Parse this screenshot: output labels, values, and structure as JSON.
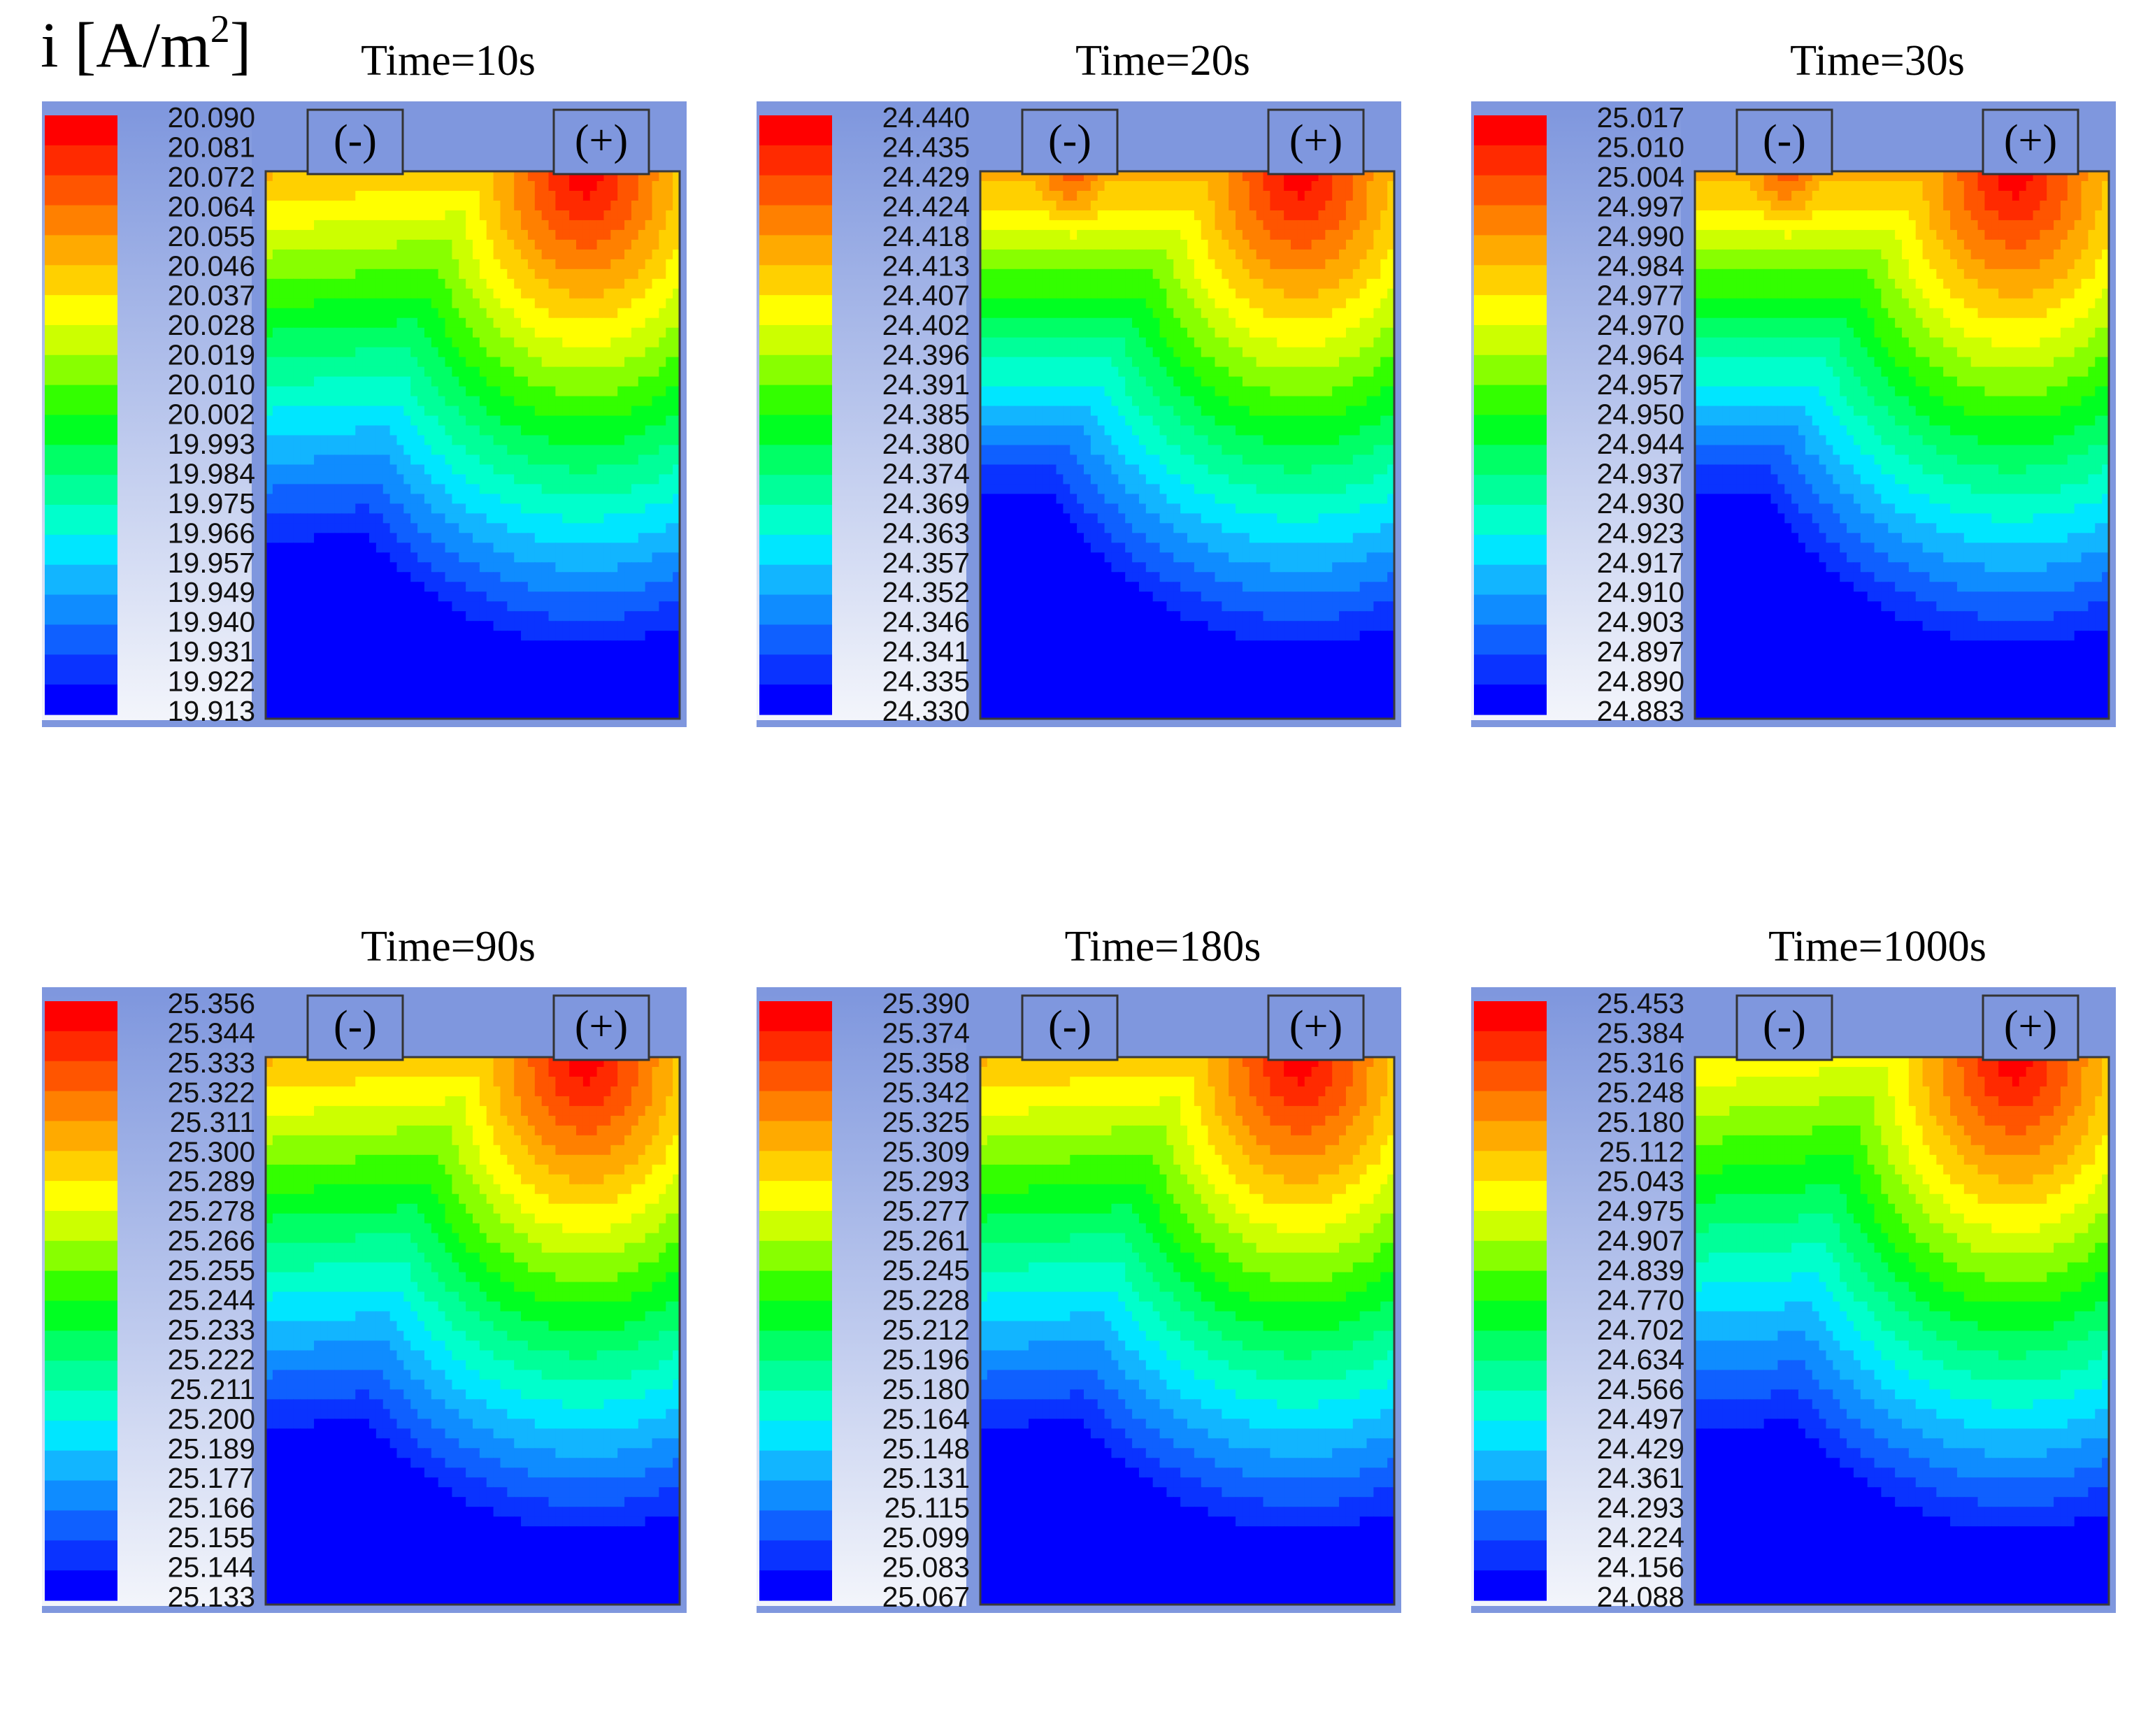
{
  "quantity_label": {
    "symbol": "i",
    "unit": "[A/m",
    "unit_exponent": "2",
    "unit_close": "]"
  },
  "colormap": [
    "#0000ff",
    "#0a33ff",
    "#0f60ff",
    "#0f8cff",
    "#12b5ff",
    "#00e6ff",
    "#00ffcc",
    "#00ff99",
    "#00ff66",
    "#00ff22",
    "#33ff00",
    "#88ff00",
    "#ccff00",
    "#ffff00",
    "#ffd000",
    "#ffaa00",
    "#ff8000",
    "#ff5500",
    "#ff2a00",
    "#ff0000"
  ],
  "colors": {
    "panel_background": "#7f97de",
    "legend_background_top": "#7f97de",
    "legend_background_bottom": "#f3f5fb"
  },
  "chart_data": [
    {
      "type": "heatmap",
      "title": "Time=10s",
      "electrode_negative": "(-)",
      "electrode_positive": "(+)",
      "colorbar_ticks": [
        "20.090",
        "20.081",
        "20.072",
        "20.064",
        "20.055",
        "20.046",
        "20.037",
        "20.028",
        "20.019",
        "20.010",
        "20.002",
        "19.993",
        "19.984",
        "19.975",
        "19.966",
        "19.957",
        "19.949",
        "19.940",
        "19.931",
        "19.922",
        "19.913"
      ],
      "range": [
        19.913,
        20.09
      ],
      "variant": 2
    },
    {
      "type": "heatmap",
      "title": "Time=20s",
      "electrode_negative": "(-)",
      "electrode_positive": "(+)",
      "colorbar_ticks": [
        "24.440",
        "24.435",
        "24.429",
        "24.424",
        "24.418",
        "24.413",
        "24.407",
        "24.402",
        "24.396",
        "24.391",
        "24.385",
        "24.380",
        "24.374",
        "24.369",
        "24.363",
        "24.357",
        "24.352",
        "24.346",
        "24.341",
        "24.335",
        "24.330"
      ],
      "range": [
        24.33,
        24.44
      ],
      "variant": 1
    },
    {
      "type": "heatmap",
      "title": "Time=30s",
      "electrode_negative": "(-)",
      "electrode_positive": "(+)",
      "colorbar_ticks": [
        "25.017",
        "25.010",
        "25.004",
        "24.997",
        "24.990",
        "24.984",
        "24.977",
        "24.970",
        "24.964",
        "24.957",
        "24.950",
        "24.944",
        "24.937",
        "24.930",
        "24.923",
        "24.917",
        "24.910",
        "24.903",
        "24.897",
        "24.890",
        "24.883"
      ],
      "range": [
        24.883,
        25.017
      ],
      "variant": 1
    },
    {
      "type": "heatmap",
      "title": "Time=90s",
      "electrode_negative": "(-)",
      "electrode_positive": "(+)",
      "colorbar_ticks": [
        "25.356",
        "25.344",
        "25.333",
        "25.322",
        "25.311",
        "25.300",
        "25.289",
        "25.278",
        "25.266",
        "25.255",
        "25.244",
        "25.233",
        "25.222",
        "25.211",
        "25.200",
        "25.189",
        "25.177",
        "25.166",
        "25.155",
        "25.144",
        "25.133"
      ],
      "range": [
        25.133,
        25.356
      ],
      "variant": 2
    },
    {
      "type": "heatmap",
      "title": "Time=180s",
      "electrode_negative": "(-)",
      "electrode_positive": "(+)",
      "colorbar_ticks": [
        "25.390",
        "25.374",
        "25.358",
        "25.342",
        "25.325",
        "25.309",
        "25.293",
        "25.277",
        "25.261",
        "25.245",
        "25.228",
        "25.212",
        "25.196",
        "25.180",
        "25.164",
        "25.148",
        "25.131",
        "25.115",
        "25.099",
        "25.083",
        "25.067"
      ],
      "range": [
        25.067,
        25.39
      ],
      "variant": 2
    },
    {
      "type": "heatmap",
      "title": "Time=1000s",
      "electrode_negative": "(-)",
      "electrode_positive": "(+)",
      "colorbar_ticks": [
        "25.453",
        "25.384",
        "25.316",
        "25.248",
        "25.180",
        "25.112",
        "25.043",
        "24.975",
        "24.907",
        "24.839",
        "24.770",
        "24.702",
        "24.634",
        "24.566",
        "24.497",
        "24.429",
        "24.361",
        "24.293",
        "24.224",
        "24.156",
        "24.088"
      ],
      "range": [
        24.088,
        25.453
      ],
      "variant": 3
    }
  ]
}
